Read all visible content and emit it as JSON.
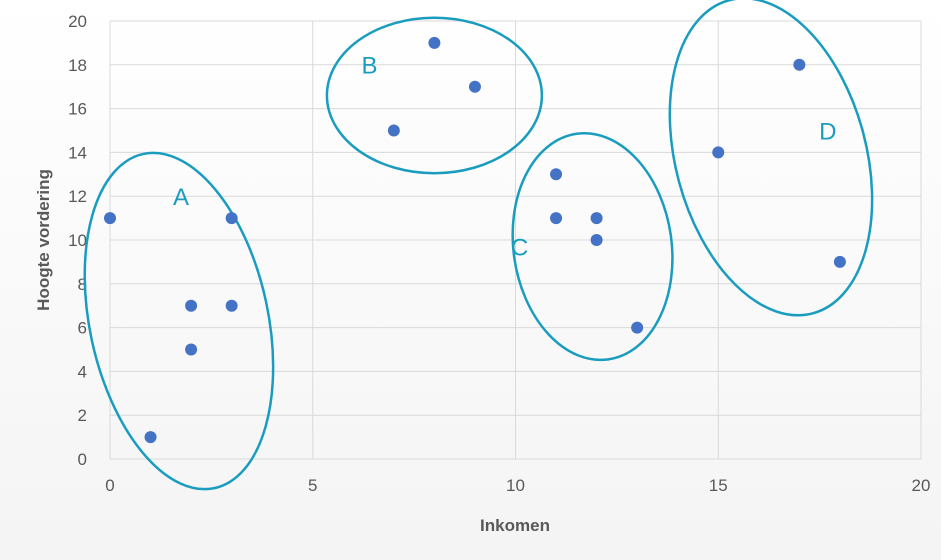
{
  "chart_data": {
    "type": "scatter",
    "xlabel": "Inkomen",
    "ylabel": "Hoogte vordering",
    "xlim": [
      0,
      20
    ],
    "ylim": [
      0,
      20
    ],
    "x_ticks": [
      "0",
      "5",
      "10",
      "15",
      "20"
    ],
    "y_ticks": [
      "0",
      "2",
      "4",
      "6",
      "8",
      "10",
      "12",
      "14",
      "16",
      "18",
      "20"
    ],
    "grid": true,
    "legend": "none",
    "point_color": "#4472c4",
    "annotation_color": "#1a9cbf",
    "points": [
      {
        "x": 0,
        "y": 11
      },
      {
        "x": 1,
        "y": 1
      },
      {
        "x": 2,
        "y": 7
      },
      {
        "x": 2,
        "y": 5
      },
      {
        "x": 3,
        "y": 11
      },
      {
        "x": 3,
        "y": 7
      },
      {
        "x": 7,
        "y": 15
      },
      {
        "x": 8,
        "y": 19
      },
      {
        "x": 9,
        "y": 17
      },
      {
        "x": 11,
        "y": 13
      },
      {
        "x": 11,
        "y": 11
      },
      {
        "x": 12,
        "y": 11
      },
      {
        "x": 12,
        "y": 10
      },
      {
        "x": 13,
        "y": 6
      },
      {
        "x": 15,
        "y": 14
      },
      {
        "x": 17,
        "y": 18
      },
      {
        "x": 18,
        "y": 9
      }
    ],
    "clusters": [
      {
        "label": "A",
        "cx": 1.7,
        "cy": 6.3,
        "rx": 2.2,
        "ry": 7.8,
        "rotate": -12,
        "label_x": 1.75,
        "label_y": 11.6
      },
      {
        "label": "B",
        "cx": 8.0,
        "cy": 16.6,
        "rx": 2.65,
        "ry": 3.55,
        "rotate": 0,
        "label_x": 6.4,
        "label_y": 17.6
      },
      {
        "label": "C",
        "cx": 11.9,
        "cy": 9.7,
        "rx": 1.95,
        "ry": 5.2,
        "rotate": -8,
        "label_x": 10.1,
        "label_y": 9.3
      },
      {
        "label": "D",
        "cx": 16.3,
        "cy": 13.8,
        "rx": 2.35,
        "ry": 7.4,
        "rotate": -15,
        "label_x": 17.7,
        "label_y": 14.6
      }
    ]
  }
}
